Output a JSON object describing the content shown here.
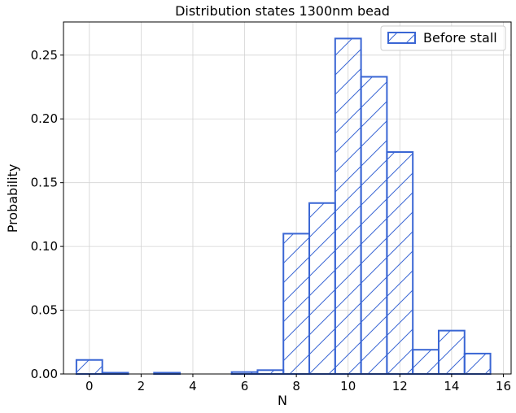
{
  "chart_data": {
    "type": "bar",
    "title": "Distribution states 1300nm bead",
    "xlabel": "N",
    "ylabel": "Probability",
    "xlim": [
      -1,
      16.3
    ],
    "ylim": [
      0,
      0.276
    ],
    "xticks": [
      0,
      2,
      4,
      6,
      8,
      10,
      12,
      14,
      16
    ],
    "yticks": [
      0.0,
      0.05,
      0.1,
      0.15,
      0.2,
      0.25
    ],
    "ytick_labels": [
      "0.00",
      "0.05",
      "0.10",
      "0.15",
      "0.20",
      "0.25"
    ],
    "grid": true,
    "legend": {
      "placement": "top-right"
    },
    "series": [
      {
        "name": "Before stall",
        "color": "#3a66d4",
        "hatch": "diagonal",
        "bins": [
          0,
          1,
          3,
          6,
          7,
          8,
          9,
          10,
          11,
          12,
          13,
          14,
          15
        ],
        "values": [
          0.011,
          0.001,
          0.001,
          0.0015,
          0.003,
          0.11,
          0.134,
          0.263,
          0.233,
          0.174,
          0.019,
          0.034,
          0.016
        ]
      }
    ]
  }
}
